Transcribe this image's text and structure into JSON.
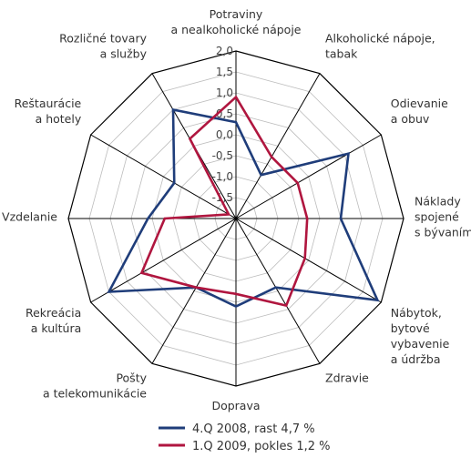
{
  "chart_data": {
    "type": "radar",
    "categories": [
      [
        "Potraviny",
        "a nealkoholické nápoje"
      ],
      [
        "Alkoholické nápoje,",
        "tabak"
      ],
      [
        "Odievanie",
        "a obuv"
      ],
      [
        "Náklady",
        "spojené",
        "s bývaním"
      ],
      [
        "Nábytok,",
        "bytové",
        "vybavenie",
        "a údržba"
      ],
      [
        "Zdravie"
      ],
      [
        "Doprava"
      ],
      [
        "Pošty",
        "a telekomunikácie"
      ],
      [
        "Rekreácia",
        "a kultúra"
      ],
      [
        "Vzdelanie"
      ],
      [
        "Reštaurácie",
        "a hotely"
      ],
      [
        "Rozličné tovary",
        "a služby"
      ]
    ],
    "rlim": [
      -2.0,
      2.0
    ],
    "ticks": [
      "-2,0",
      "-1,5",
      "-1,0",
      "-0,5",
      "0,0",
      "0,5",
      "1,0",
      "1,5",
      "2,0"
    ],
    "grid": true,
    "legend_position": "bottom",
    "series": [
      {
        "name": "4.Q 2008, rast 4,7 %",
        "color": "#1f3d7a",
        "values": [
          0.3,
          -0.8,
          1.1,
          0.5,
          1.9,
          -0.1,
          0.1,
          -0.1,
          1.5,
          0.1,
          -0.3,
          1.0
        ]
      },
      {
        "name": "1.Q 2009, pokles 1,2 %",
        "color": "#b0163f",
        "values": [
          0.9,
          -0.3,
          -0.3,
          -0.3,
          -0.1,
          0.4,
          -0.2,
          -0.1,
          0.6,
          -0.3,
          -1.8,
          0.2
        ]
      }
    ]
  }
}
